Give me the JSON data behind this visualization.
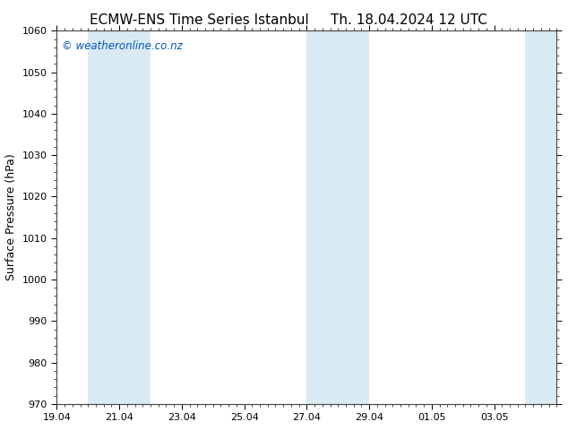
{
  "title_left": "ECMW-ENS Time Series Istanbul",
  "title_right": "Th. 18.04.2024 12 UTC",
  "ylabel": "Surface Pressure (hPa)",
  "ylim": [
    970,
    1060
  ],
  "yticks": [
    970,
    980,
    990,
    1000,
    1010,
    1020,
    1030,
    1040,
    1050,
    1060
  ],
  "xlim_start": 0,
  "xlim_end": 16,
  "xtick_positions": [
    0,
    2,
    4,
    6,
    8,
    10,
    12,
    14
  ],
  "xtick_labels": [
    "19.04",
    "21.04",
    "23.04",
    "25.04",
    "27.04",
    "29.04",
    "01.05",
    "03.05"
  ],
  "shade_bands": [
    {
      "xmin": 1.0,
      "xmax": 1.5
    },
    {
      "xmin": 1.5,
      "xmax": 3.0
    },
    {
      "xmin": 8.0,
      "xmax": 9.0
    },
    {
      "xmin": 9.0,
      "xmax": 10.0
    },
    {
      "xmin": 15.0,
      "xmax": 16.0
    }
  ],
  "shade_color": "#daeaf5",
  "background_color": "#ffffff",
  "watermark": "© weatheronline.co.nz",
  "watermark_color": "#0055bb",
  "title_fontsize": 11,
  "ylabel_fontsize": 9,
  "tick_fontsize": 8,
  "watermark_fontsize": 8.5
}
